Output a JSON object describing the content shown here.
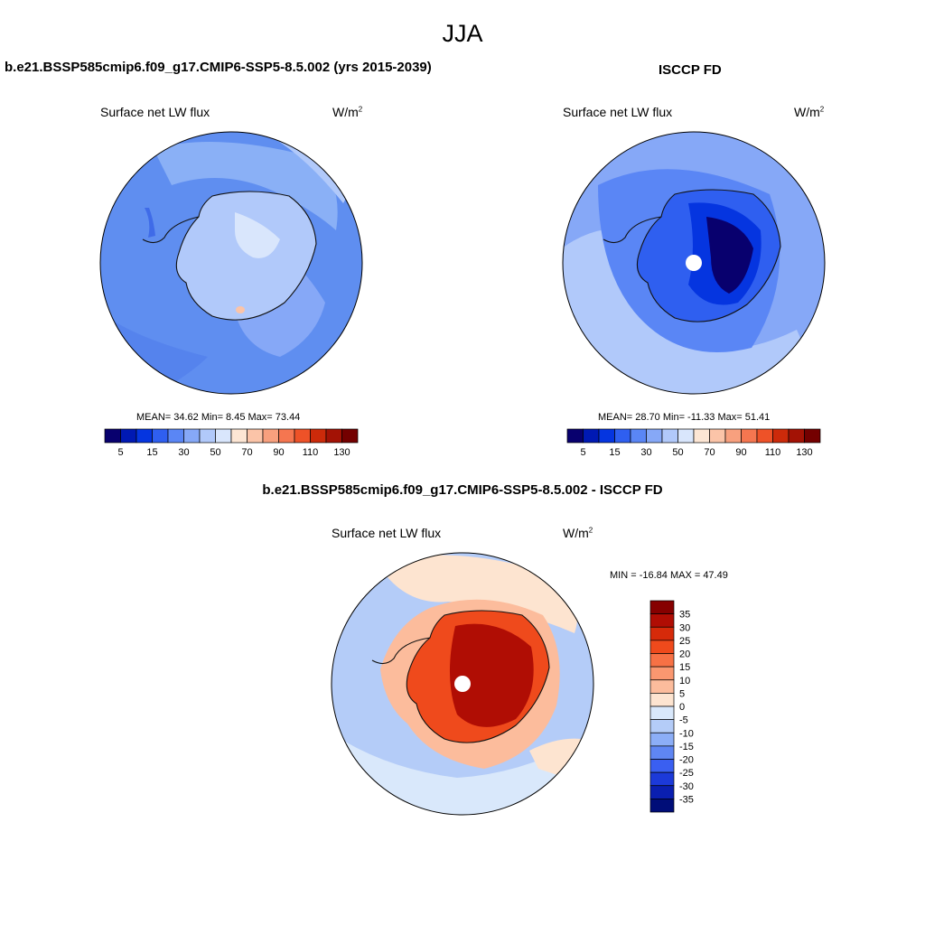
{
  "figure": {
    "season": "JJA"
  },
  "panels": {
    "model": {
      "title": "b.e21.BSSP585cmip6.f09_g17.CMIP6-SSP5-8.5.002 (yrs 2015-2039)",
      "variable": "Surface net LW flux",
      "units": "W/m",
      "units_exp": "2",
      "stats": "MEAN=  34.62  Min=   8.45  Max=  73.44"
    },
    "obs": {
      "title": "ISCCP FD",
      "variable": "Surface net LW flux",
      "units": "W/m",
      "units_exp": "2",
      "stats": "MEAN=  28.70  Min= -11.33  Max=  51.41"
    },
    "diff": {
      "title": "b.e21.BSSP585cmip6.f09_g17.CMIP6-SSP5-8.5.002 - ISCCP FD",
      "variable": "Surface net LW flux",
      "units": "W/m",
      "units_exp": "2",
      "stats": "MIN = -16.84 MAX =  47.49"
    }
  },
  "colorbars": {
    "field": {
      "colors": [
        "#08006e",
        "#0019b3",
        "#0535e0",
        "#2f5ff0",
        "#5a86f5",
        "#86a8f7",
        "#b1c9fa",
        "#d9e6fc",
        "#fde6d4",
        "#fbc4a8",
        "#f8a07e",
        "#f57650",
        "#ee5228",
        "#cc2a0a",
        "#a31205",
        "#740000"
      ],
      "tick_labels": [
        "5",
        "15",
        "30",
        "50",
        "70",
        "90",
        "110",
        "130"
      ]
    },
    "diff": {
      "colors": [
        "#860000",
        "#b00d04",
        "#d62a0a",
        "#ef4a1c",
        "#f77145",
        "#fa9770",
        "#fcbc9c",
        "#fde4d0",
        "#d9e8fb",
        "#b4ccf8",
        "#8caef7",
        "#5f86f3",
        "#3a5ff1",
        "#1c3ad9",
        "#0a1fb0",
        "#000d78"
      ],
      "tick_labels": [
        "35",
        "30",
        "25",
        "20",
        "15",
        "10",
        "5",
        "0",
        "-5",
        "-10",
        "-15",
        "-20",
        "-25",
        "-30",
        "-35"
      ]
    }
  }
}
